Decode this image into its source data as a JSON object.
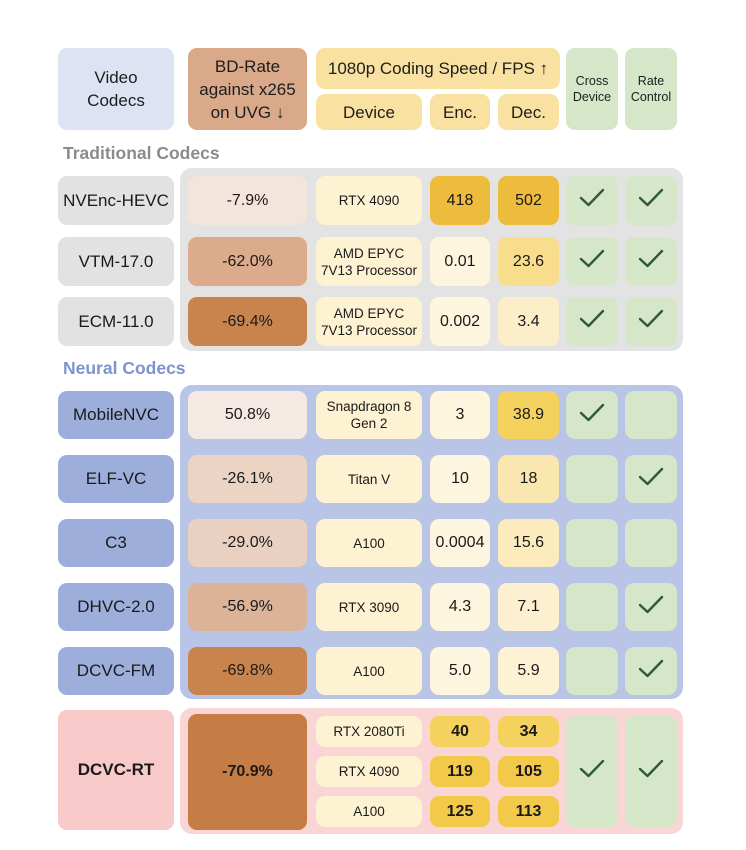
{
  "colors": {
    "traditional_bg": "#e3e3e3",
    "neural_bg": "#b8c5e6",
    "rt_bg": "#f9d6d5",
    "traditional_title": "#8b8b8b",
    "neural_title": "#7d93cf",
    "check": "#2f5a34",
    "check_cell": "#d6e6c8"
  },
  "header": {
    "video_codecs": "Video Codecs",
    "bd_rate": "BD-Rate against x265 on UVG ↓",
    "speed_title": "1080p Coding Speed / FPS ↑",
    "device": "Device",
    "enc": "Enc.",
    "dec": "Dec.",
    "cross_device": "Cross Device",
    "rate_control": "Rate Control"
  },
  "sections": {
    "traditional": "Traditional Codecs",
    "neural": "Neural Codecs"
  },
  "rows": [
    {
      "name": "NVEnc-HEVC",
      "bd": "-7.9%",
      "device": "RTX 4090",
      "enc": "418",
      "dec": "502",
      "cross": "check-icon",
      "rate": "check-icon"
    },
    {
      "name": "VTM-17.0",
      "bd": "-62.0%",
      "device": "AMD EPYC 7V13 Processor",
      "enc": "0.01",
      "dec": "23.6",
      "cross": "check-icon",
      "rate": "check-icon"
    },
    {
      "name": "ECM-11.0",
      "bd": "-69.4%",
      "device": "AMD EPYC 7V13 Processor",
      "enc": "0.002",
      "dec": "3.4",
      "cross": "check-icon",
      "rate": "check-icon"
    },
    {
      "name": "MobileNVC",
      "bd": "50.8%",
      "device": "Snapdragon 8 Gen 2",
      "enc": "3",
      "dec": "38.9",
      "cross": "check-icon",
      "rate": ""
    },
    {
      "name": "ELF-VC",
      "bd": "-26.1%",
      "device": "Titan V",
      "enc": "10",
      "dec": "18",
      "cross": "",
      "rate": "check-icon"
    },
    {
      "name": "C3",
      "bd": "-29.0%",
      "device": "A100",
      "enc": "0.0004",
      "dec": "15.6",
      "cross": "",
      "rate": ""
    },
    {
      "name": "DHVC-2.0",
      "bd": "-56.9%",
      "device": "RTX 3090",
      "enc": "4.3",
      "dec": "7.1",
      "cross": "",
      "rate": "check-icon"
    },
    {
      "name": "DCVC-FM",
      "bd": "-69.8%",
      "device": "A100",
      "enc": "5.0",
      "dec": "5.9",
      "cross": "",
      "rate": "check-icon"
    }
  ],
  "ours": {
    "name": "DCVC-RT",
    "bd": "-70.9%",
    "devices": [
      {
        "device": "RTX 2080Ti",
        "enc": "40",
        "dec": "34"
      },
      {
        "device": "RTX 4090",
        "enc": "119",
        "dec": "105"
      },
      {
        "device": "A100",
        "enc": "125",
        "dec": "113"
      }
    ],
    "cross": "check-icon",
    "rate": "check-icon"
  }
}
